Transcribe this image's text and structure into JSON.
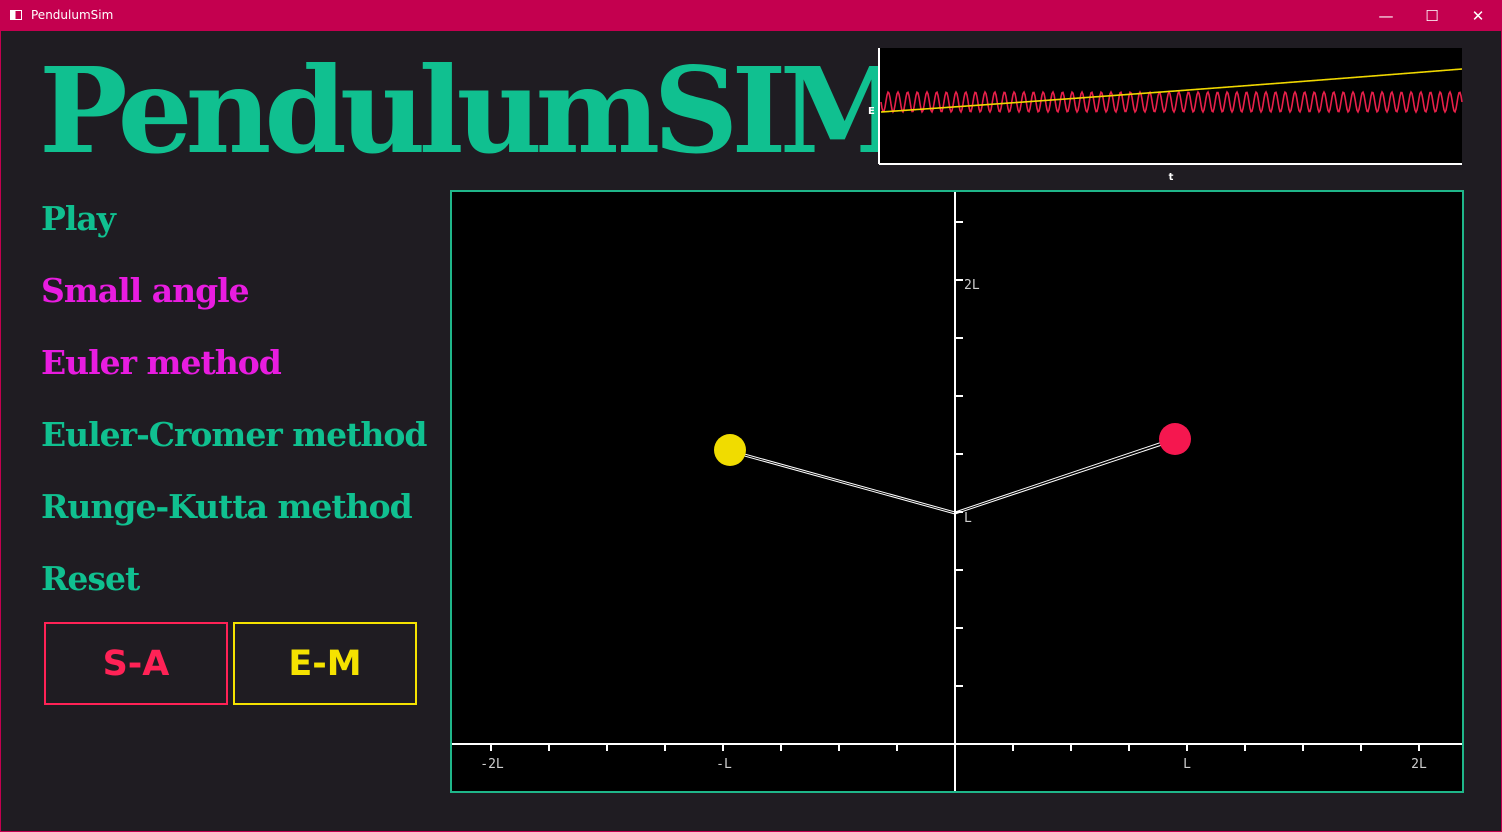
{
  "window": {
    "title": "PendulumSim",
    "controls": {
      "minimize": "—",
      "maximize": "☐",
      "close": "✕"
    }
  },
  "app": {
    "title": "PendulumSIM",
    "title_color": "#10c090"
  },
  "menu": [
    {
      "label": "Play",
      "color": "#10c090"
    },
    {
      "label": "Small angle",
      "color": "#e81ce0"
    },
    {
      "label": "Euler method",
      "color": "#e81ce0"
    },
    {
      "label": "Euler-Cromer method",
      "color": "#10c090"
    },
    {
      "label": "Runge-Kutta method",
      "color": "#10c090"
    },
    {
      "label": "Reset",
      "color": "#10c090"
    }
  ],
  "mode_buttons": [
    {
      "label": "S-A",
      "color": "#ff2256"
    },
    {
      "label": "E-M",
      "color": "#f5e200"
    }
  ],
  "energy_plot": {
    "ylabel": "E",
    "xlabel": "t",
    "series_colors": {
      "oscillating": "#e8204a",
      "drifting": "#f0d800"
    }
  },
  "simulation": {
    "x_tick_labels": [
      "-2L",
      "-L",
      "L",
      "2L"
    ],
    "y_tick_labels": [
      "2L",
      "L"
    ],
    "bobs": [
      {
        "color": "#f0dc00"
      },
      {
        "color": "#f5174f"
      }
    ],
    "frame_color": "#1fb68a"
  }
}
